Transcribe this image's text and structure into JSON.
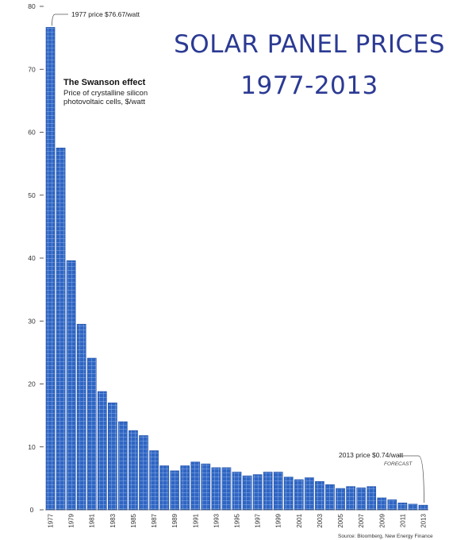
{
  "header": {
    "title_line1": "SOLAR PANEL PRICES",
    "title_line2": "1977-2013"
  },
  "annotations": {
    "swanson_title": "The Swanson effect",
    "swanson_subtitle": "Price of crystalline silicon photovoltaic cells, $/watt",
    "price_1977": "1977 price $76.67/watt",
    "price_2013": "2013 price $0.74/watt",
    "forecast": "FORECAST",
    "source": "Source: Bloomberg, New Energy Finance"
  },
  "colors": {
    "bar": "#2f66c4",
    "bar_cell_line": "#a9c3ee",
    "title": "#2b3a93",
    "axis": "#333333"
  },
  "chart_data": {
    "type": "bar",
    "title": "SOLAR PANEL PRICES 1977-2013",
    "subtitle": "Price of crystalline silicon photovoltaic cells, $/watt",
    "xlabel": "",
    "ylabel": "",
    "ylim": [
      0,
      80
    ],
    "yticks": [
      0,
      10,
      20,
      30,
      40,
      50,
      60,
      70,
      80
    ],
    "grid": false,
    "categories": [
      "1977",
      "1978",
      "1979",
      "1980",
      "1981",
      "1982",
      "1983",
      "1984",
      "1985",
      "1986",
      "1987",
      "1988",
      "1989",
      "1990",
      "1991",
      "1992",
      "1993",
      "1994",
      "1995",
      "1996",
      "1997",
      "1998",
      "1999",
      "2000",
      "2001",
      "2002",
      "2003",
      "2004",
      "2005",
      "2006",
      "2007",
      "2008",
      "2009",
      "2010",
      "2011",
      "2012",
      "2013"
    ],
    "x_tick_labels": [
      "1977",
      "1979",
      "1981",
      "1983",
      "1985",
      "1987",
      "1989",
      "1991",
      "1993",
      "1995",
      "1997",
      "1999",
      "2001",
      "2003",
      "2005",
      "2007",
      "2009",
      "2011",
      "2013"
    ],
    "values": [
      76.67,
      57.5,
      39.6,
      29.5,
      24.1,
      18.8,
      17.0,
      14.0,
      12.6,
      11.8,
      9.4,
      7.0,
      6.2,
      7.0,
      7.6,
      7.3,
      6.7,
      6.7,
      6.0,
      5.4,
      5.6,
      6.0,
      6.0,
      5.2,
      4.8,
      5.1,
      4.5,
      4.0,
      3.4,
      3.7,
      3.5,
      3.7,
      1.9,
      1.6,
      1.1,
      0.9,
      0.74
    ],
    "forecast_categories": [
      "2013"
    ]
  }
}
